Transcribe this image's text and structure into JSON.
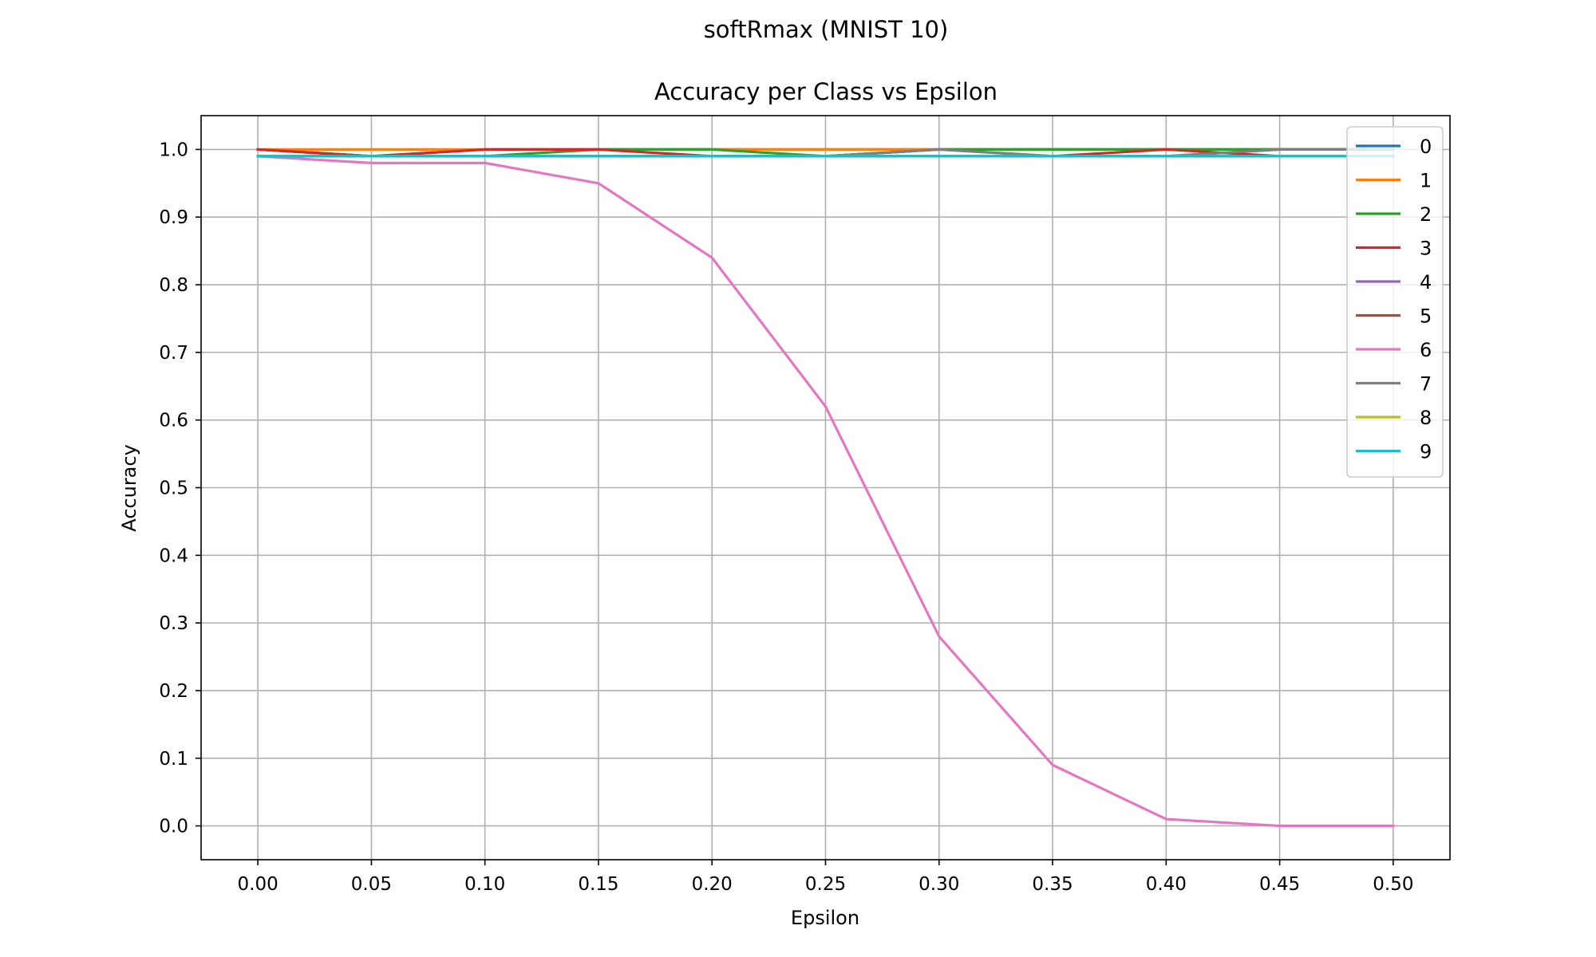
{
  "figure": {
    "suptitle": "softRmax (MNIST 10)"
  },
  "chart_data": {
    "type": "line",
    "title": "Accuracy per Class vs Epsilon",
    "xlabel": "Epsilon",
    "ylabel": "Accuracy",
    "x": [
      0.0,
      0.05,
      0.1,
      0.15,
      0.2,
      0.25,
      0.3,
      0.35,
      0.4,
      0.45,
      0.5
    ],
    "xticks": [
      "0.00",
      "0.05",
      "0.10",
      "0.15",
      "0.20",
      "0.25",
      "0.30",
      "0.35",
      "0.40",
      "0.45",
      "0.50"
    ],
    "yticks": [
      "0.0",
      "0.1",
      "0.2",
      "0.3",
      "0.4",
      "0.5",
      "0.6",
      "0.7",
      "0.8",
      "0.9",
      "1.0"
    ],
    "xlim": [
      -0.025,
      0.525
    ],
    "ylim": [
      -0.05,
      1.05
    ],
    "grid": true,
    "legend_position": "top-right",
    "series": [
      {
        "name": "0",
        "color": "#1f77b4",
        "values": [
          1.0,
          0.99,
          1.0,
          1.0,
          1.0,
          1.0,
          1.0,
          1.0,
          1.0,
          1.0,
          1.0
        ]
      },
      {
        "name": "1",
        "color": "#ff7f0e",
        "values": [
          1.0,
          1.0,
          1.0,
          1.0,
          1.0,
          1.0,
          1.0,
          1.0,
          1.0,
          1.0,
          1.0
        ]
      },
      {
        "name": "2",
        "color": "#2ca02c",
        "values": [
          1.0,
          0.99,
          0.99,
          1.0,
          1.0,
          0.99,
          1.0,
          1.0,
          1.0,
          1.0,
          1.0
        ]
      },
      {
        "name": "3",
        "color": "#d62728",
        "values": [
          1.0,
          0.99,
          1.0,
          1.0,
          0.99,
          0.99,
          0.99,
          0.99,
          1.0,
          0.99,
          0.99
        ]
      },
      {
        "name": "4",
        "color": "#9467bd",
        "values": [
          0.99,
          0.99,
          0.99,
          0.99,
          0.99,
          0.99,
          0.99,
          0.99,
          0.99,
          0.99,
          0.99
        ]
      },
      {
        "name": "5",
        "color": "#8c564b",
        "values": [
          0.99,
          0.99,
          0.99,
          0.99,
          0.99,
          0.99,
          1.0,
          0.99,
          0.99,
          1.0,
          1.0
        ]
      },
      {
        "name": "6",
        "color": "#e377c2",
        "values": [
          0.99,
          0.98,
          0.98,
          0.95,
          0.84,
          0.62,
          0.28,
          0.09,
          0.01,
          0.0,
          0.0
        ]
      },
      {
        "name": "7",
        "color": "#7f7f7f",
        "values": [
          0.99,
          0.99,
          0.99,
          0.99,
          0.99,
          0.99,
          1.0,
          0.99,
          0.99,
          1.0,
          1.0
        ]
      },
      {
        "name": "8",
        "color": "#bcbd22",
        "values": [
          0.99,
          0.99,
          0.99,
          0.99,
          0.99,
          0.99,
          0.99,
          0.99,
          0.99,
          0.99,
          0.99
        ]
      },
      {
        "name": "9",
        "color": "#17becf",
        "values": [
          0.99,
          0.99,
          0.99,
          0.99,
          0.99,
          0.99,
          0.99,
          0.99,
          0.99,
          0.99,
          0.99
        ]
      }
    ]
  }
}
